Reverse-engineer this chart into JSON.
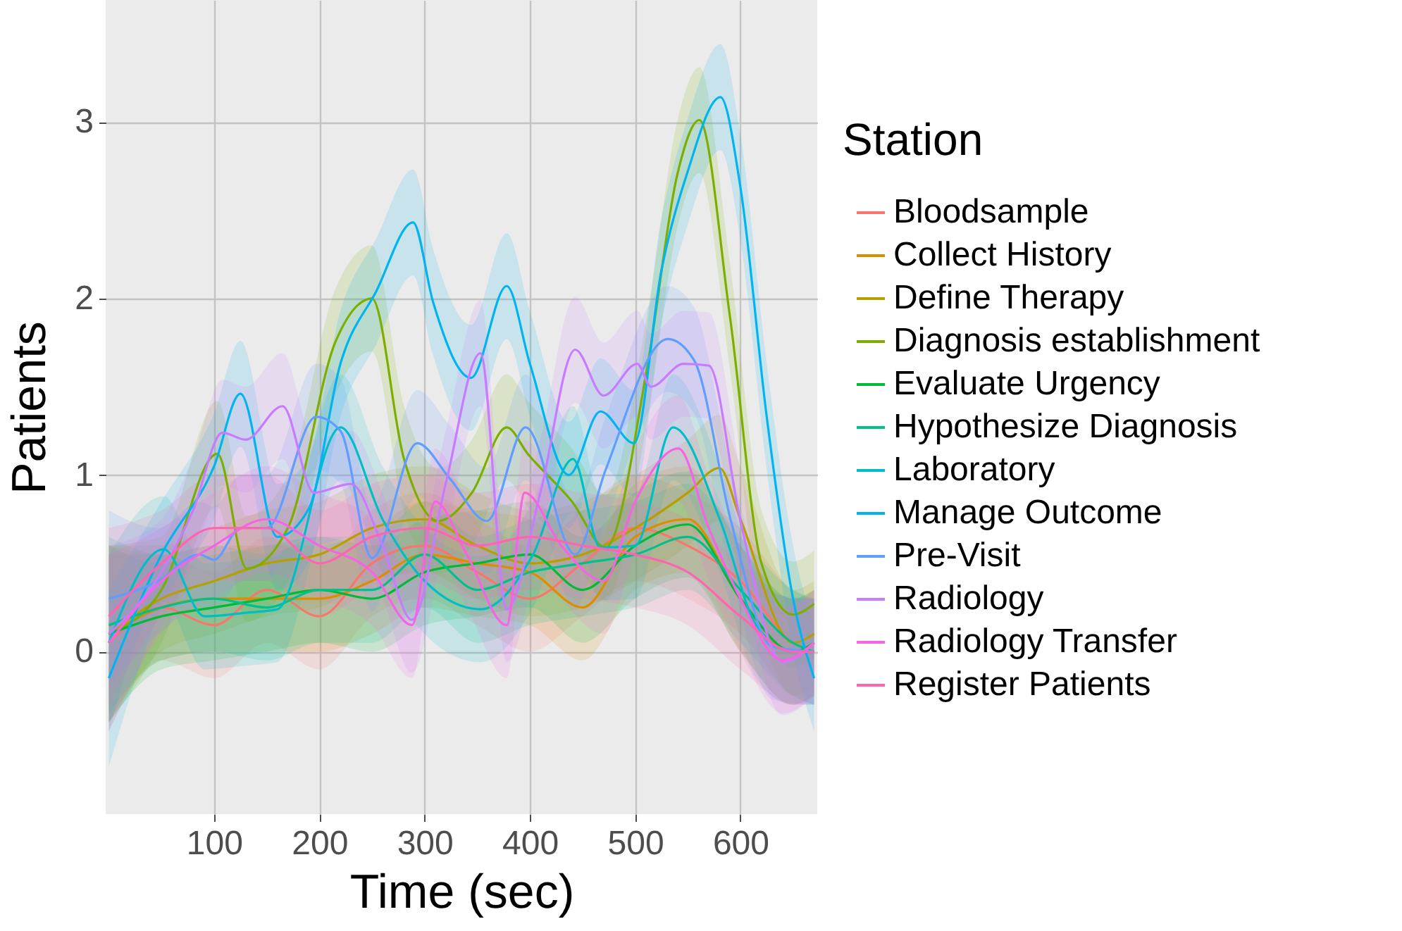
{
  "chart_data": {
    "type": "line",
    "xlabel": "Time (sec)",
    "ylabel": "Patients",
    "legend_title": "Station",
    "legend": "right",
    "grid": true,
    "xlim": [
      -3,
      673
    ],
    "xticks": [
      100,
      200,
      300,
      400,
      500,
      600
    ],
    "ylim": [
      -0.92,
      3.69
    ],
    "yticks": [
      0,
      1,
      2,
      3
    ],
    "x": [
      0,
      50,
      100,
      150,
      200,
      250,
      300,
      350,
      400,
      450,
      500,
      550,
      600,
      650,
      670
    ],
    "series": [
      {
        "name": "Bloodsample",
        "color": "#f8766d",
        "values": [
          0.05,
          0.25,
          0.15,
          0.35,
          0.2,
          0.5,
          0.6,
          0.45,
          0.3,
          0.5,
          0.7,
          0.6,
          0.4,
          0.05,
          0.0
        ],
        "lower": [
          -0.45,
          -0.05,
          -0.15,
          0.05,
          -0.1,
          0.2,
          0.3,
          0.15,
          0.0,
          0.2,
          0.4,
          0.3,
          0.1,
          -0.25,
          -0.3
        ],
        "upper": [
          0.55,
          0.55,
          0.45,
          0.65,
          0.5,
          0.8,
          0.9,
          0.75,
          0.6,
          0.8,
          1.0,
          0.9,
          0.7,
          0.35,
          0.3
        ]
      },
      {
        "name": "Collect History",
        "color": "#de8c00",
        "values": [
          0.1,
          0.25,
          0.3,
          0.3,
          0.3,
          0.4,
          0.55,
          0.5,
          0.45,
          0.25,
          0.65,
          0.75,
          0.3,
          0.0,
          0.05
        ],
        "lower": [
          -0.4,
          -0.05,
          0.0,
          0.0,
          0.0,
          0.1,
          0.25,
          0.2,
          0.15,
          -0.05,
          0.35,
          0.45,
          0.0,
          -0.3,
          -0.25
        ],
        "upper": [
          0.6,
          0.55,
          0.6,
          0.6,
          0.6,
          0.7,
          0.85,
          0.8,
          0.75,
          0.55,
          0.95,
          1.05,
          0.6,
          0.3,
          0.35
        ]
      },
      {
        "name": "Define Therapy",
        "color": "#b79f00",
        "x": [
          0,
          50,
          100,
          150,
          200,
          250,
          300,
          350,
          400,
          450,
          500,
          550,
          580,
          600,
          650,
          670
        ],
        "values": [
          0.1,
          0.3,
          0.4,
          0.5,
          0.55,
          0.7,
          0.75,
          0.6,
          0.5,
          0.55,
          0.7,
          0.9,
          1.04,
          0.75,
          0.05,
          0.1
        ],
        "lower": [
          -0.4,
          0.0,
          0.1,
          0.2,
          0.25,
          0.4,
          0.45,
          0.3,
          0.2,
          0.25,
          0.4,
          0.6,
          0.74,
          0.45,
          -0.25,
          -0.2
        ],
        "upper": [
          0.6,
          0.6,
          0.7,
          0.8,
          0.85,
          1.0,
          1.05,
          0.9,
          0.8,
          0.85,
          1.0,
          1.2,
          1.34,
          1.05,
          0.35,
          0.4
        ]
      },
      {
        "name": "Diagnosis establishment",
        "color": "#7cae00",
        "x": [
          0,
          50,
          103,
          131,
          170,
          215,
          250,
          280,
          313,
          345,
          378,
          398,
          440,
          472,
          512,
          540,
          561,
          590,
          620,
          650,
          670
        ],
        "values": [
          0.1,
          0.35,
          1.12,
          0.47,
          0.7,
          1.75,
          2.0,
          1.1,
          0.74,
          0.9,
          1.27,
          1.12,
          0.85,
          0.59,
          1.63,
          2.7,
          3.01,
          1.9,
          0.5,
          0.21,
          0.27
        ],
        "lower": [
          -0.4,
          0.05,
          0.82,
          0.17,
          0.4,
          1.45,
          1.7,
          0.8,
          0.44,
          0.6,
          0.97,
          0.82,
          0.55,
          0.29,
          1.33,
          2.4,
          2.71,
          1.6,
          0.2,
          -0.09,
          -0.03
        ],
        "upper": [
          0.6,
          0.65,
          1.42,
          0.77,
          1.0,
          2.05,
          2.3,
          1.4,
          1.04,
          1.2,
          1.57,
          1.42,
          1.15,
          0.89,
          1.93,
          3.0,
          3.31,
          2.2,
          0.8,
          0.51,
          0.57
        ]
      },
      {
        "name": "Evaluate Urgency",
        "color": "#00ba38",
        "values": [
          0.1,
          0.2,
          0.25,
          0.3,
          0.35,
          0.3,
          0.45,
          0.5,
          0.55,
          0.35,
          0.6,
          0.72,
          0.3,
          0.0,
          0.05
        ],
        "lower": [
          -0.4,
          -0.1,
          -0.05,
          0.0,
          0.05,
          0.0,
          0.15,
          0.2,
          0.25,
          0.05,
          0.3,
          0.42,
          0.0,
          -0.3,
          -0.25
        ],
        "upper": [
          0.6,
          0.5,
          0.55,
          0.6,
          0.65,
          0.6,
          0.75,
          0.8,
          0.85,
          0.65,
          0.9,
          1.02,
          0.6,
          0.3,
          0.35
        ]
      },
      {
        "name": "Hypothesize Diagnosis",
        "color": "#00c08b",
        "values": [
          0.15,
          0.25,
          0.3,
          0.25,
          0.35,
          0.35,
          0.55,
          0.35,
          0.45,
          0.5,
          0.55,
          0.65,
          0.35,
          0.05,
          0.0
        ],
        "lower": [
          -0.35,
          -0.05,
          0.0,
          -0.05,
          0.05,
          0.05,
          0.25,
          0.05,
          0.15,
          0.2,
          0.25,
          0.35,
          0.05,
          -0.25,
          -0.3
        ],
        "upper": [
          0.65,
          0.55,
          0.6,
          0.55,
          0.65,
          0.65,
          0.85,
          0.65,
          0.75,
          0.8,
          0.85,
          0.95,
          0.65,
          0.35,
          0.3
        ]
      },
      {
        "name": "Laboratory",
        "color": "#00bfc4",
        "x": [
          0,
          52,
          91,
          130,
          160,
          220,
          260,
          300,
          353,
          403,
          441,
          467,
          500,
          536,
          581,
          615,
          650,
          670
        ],
        "values": [
          0.05,
          0.58,
          0.2,
          0.22,
          0.24,
          1.27,
          0.75,
          0.4,
          0.24,
          0.55,
          1.09,
          0.59,
          0.6,
          1.27,
          0.74,
          0.15,
          0.0,
          0.0
        ],
        "lower": [
          -0.45,
          0.28,
          -0.1,
          -0.08,
          -0.06,
          0.97,
          0.45,
          0.1,
          -0.06,
          0.25,
          0.79,
          0.29,
          0.3,
          0.97,
          0.44,
          -0.15,
          -0.3,
          -0.3
        ],
        "upper": [
          0.55,
          0.88,
          0.5,
          0.52,
          0.54,
          1.57,
          1.05,
          0.7,
          0.54,
          0.85,
          1.39,
          0.89,
          0.9,
          1.57,
          1.04,
          0.45,
          0.3,
          0.3
        ]
      },
      {
        "name": "Manage Outcome",
        "color": "#00b4f0",
        "x": [
          0,
          50,
          100,
          125,
          160,
          190,
          220,
          254,
          289,
          308,
          344,
          378,
          400,
          437,
          467,
          499,
          525,
          550,
          581,
          600,
          625,
          650,
          670
        ],
        "values": [
          -0.15,
          0.55,
          1.05,
          1.46,
          0.65,
          0.81,
          1.63,
          2.04,
          2.43,
          1.98,
          1.55,
          2.07,
          1.63,
          1.0,
          1.36,
          1.18,
          2.16,
          2.72,
          3.14,
          2.63,
          1.33,
          0.3,
          -0.15
        ],
        "lower": [
          -0.65,
          0.25,
          0.75,
          1.16,
          0.35,
          0.51,
          1.33,
          1.74,
          2.13,
          1.68,
          1.25,
          1.77,
          1.33,
          0.7,
          1.06,
          0.88,
          1.86,
          2.42,
          2.84,
          2.33,
          1.03,
          0.0,
          -0.45
        ],
        "upper": [
          0.35,
          0.85,
          1.35,
          1.76,
          0.95,
          1.11,
          1.93,
          2.34,
          2.73,
          2.28,
          1.85,
          2.37,
          1.93,
          1.3,
          1.66,
          1.48,
          2.46,
          3.02,
          3.44,
          2.93,
          1.63,
          0.6,
          0.15
        ]
      },
      {
        "name": "Pre-Visit",
        "color": "#619cff",
        "x": [
          0,
          47,
          86,
          100,
          125,
          150,
          197,
          220,
          250,
          293,
          324,
          359,
          396,
          443,
          472,
          531,
          556,
          591,
          630,
          670
        ],
        "values": [
          0.3,
          0.4,
          0.55,
          0.52,
          0.7,
          0.7,
          1.33,
          1.25,
          0.53,
          1.18,
          0.98,
          0.74,
          1.27,
          0.55,
          1.03,
          1.77,
          1.65,
          0.74,
          0.03,
          0.0
        ],
        "lower": [
          -0.2,
          0.1,
          0.25,
          0.22,
          0.4,
          0.4,
          1.03,
          0.95,
          0.23,
          0.88,
          0.68,
          0.44,
          0.97,
          0.25,
          0.73,
          1.47,
          1.35,
          0.44,
          -0.27,
          -0.3
        ],
        "upper": [
          0.8,
          0.7,
          0.85,
          0.82,
          1.0,
          1.0,
          1.63,
          1.55,
          0.83,
          1.48,
          1.28,
          1.04,
          1.57,
          0.85,
          1.33,
          2.07,
          1.95,
          1.04,
          0.33,
          0.3
        ]
      },
      {
        "name": "Radiology",
        "color": "#c77cff",
        "x": [
          0,
          50,
          80,
          108,
          130,
          165,
          195,
          230,
          260,
          288,
          320,
          353,
          378,
          410,
          443,
          470,
          502,
          515,
          546,
          570,
          600,
          640,
          670
        ],
        "values": [
          0.1,
          0.45,
          0.8,
          1.24,
          1.2,
          1.39,
          0.9,
          0.95,
          0.6,
          0.18,
          0.95,
          1.69,
          0.24,
          0.9,
          1.71,
          1.45,
          1.63,
          1.5,
          1.63,
          1.62,
          0.74,
          -0.06,
          0.05
        ],
        "lower": [
          -0.4,
          0.15,
          0.5,
          0.94,
          0.9,
          1.09,
          0.6,
          0.65,
          0.3,
          -0.12,
          0.65,
          1.39,
          -0.06,
          0.6,
          1.41,
          1.15,
          1.33,
          1.2,
          1.33,
          1.32,
          0.44,
          -0.36,
          -0.25
        ],
        "upper": [
          0.6,
          0.75,
          1.1,
          1.54,
          1.5,
          1.69,
          1.2,
          1.25,
          0.9,
          0.48,
          1.25,
          1.99,
          0.54,
          1.2,
          2.01,
          1.75,
          1.93,
          1.8,
          1.93,
          1.92,
          1.04,
          0.24,
          0.35
        ]
      },
      {
        "name": "Radiology Transfer",
        "color": "#f564e3",
        "x": [
          0,
          50,
          100,
          150,
          200,
          250,
          288,
          310,
          340,
          378,
          395,
          430,
          470,
          500,
          541,
          570,
          600,
          640,
          670
        ],
        "values": [
          0.05,
          0.4,
          0.6,
          0.75,
          0.6,
          0.45,
          0.15,
          0.85,
          0.55,
          0.15,
          0.9,
          0.6,
          0.4,
          0.85,
          1.15,
          0.7,
          0.3,
          -0.05,
          0.05
        ],
        "lower": [
          -0.45,
          0.1,
          0.3,
          0.45,
          0.3,
          0.15,
          -0.15,
          0.55,
          0.25,
          -0.15,
          0.6,
          0.3,
          0.1,
          0.55,
          0.85,
          0.4,
          0.0,
          -0.35,
          -0.25
        ],
        "upper": [
          0.55,
          0.7,
          0.9,
          1.05,
          0.9,
          0.75,
          0.45,
          1.15,
          0.85,
          0.45,
          1.2,
          0.9,
          0.7,
          1.15,
          1.45,
          1.0,
          0.6,
          0.25,
          0.35
        ]
      },
      {
        "name": "Register Patients",
        "color": "#ff64b0",
        "values": [
          0.2,
          0.5,
          0.7,
          0.7,
          0.5,
          0.65,
          0.7,
          0.6,
          0.65,
          0.6,
          0.55,
          0.45,
          0.2,
          0.0,
          0.0
        ],
        "lower": [
          -0.3,
          0.2,
          0.4,
          0.4,
          0.2,
          0.35,
          0.4,
          0.3,
          0.35,
          0.3,
          0.25,
          0.15,
          -0.1,
          -0.3,
          -0.3
        ],
        "upper": [
          0.7,
          0.8,
          1.0,
          1.0,
          0.8,
          0.95,
          1.0,
          0.9,
          0.95,
          0.9,
          0.85,
          0.75,
          0.5,
          0.3,
          0.3
        ]
      }
    ]
  }
}
